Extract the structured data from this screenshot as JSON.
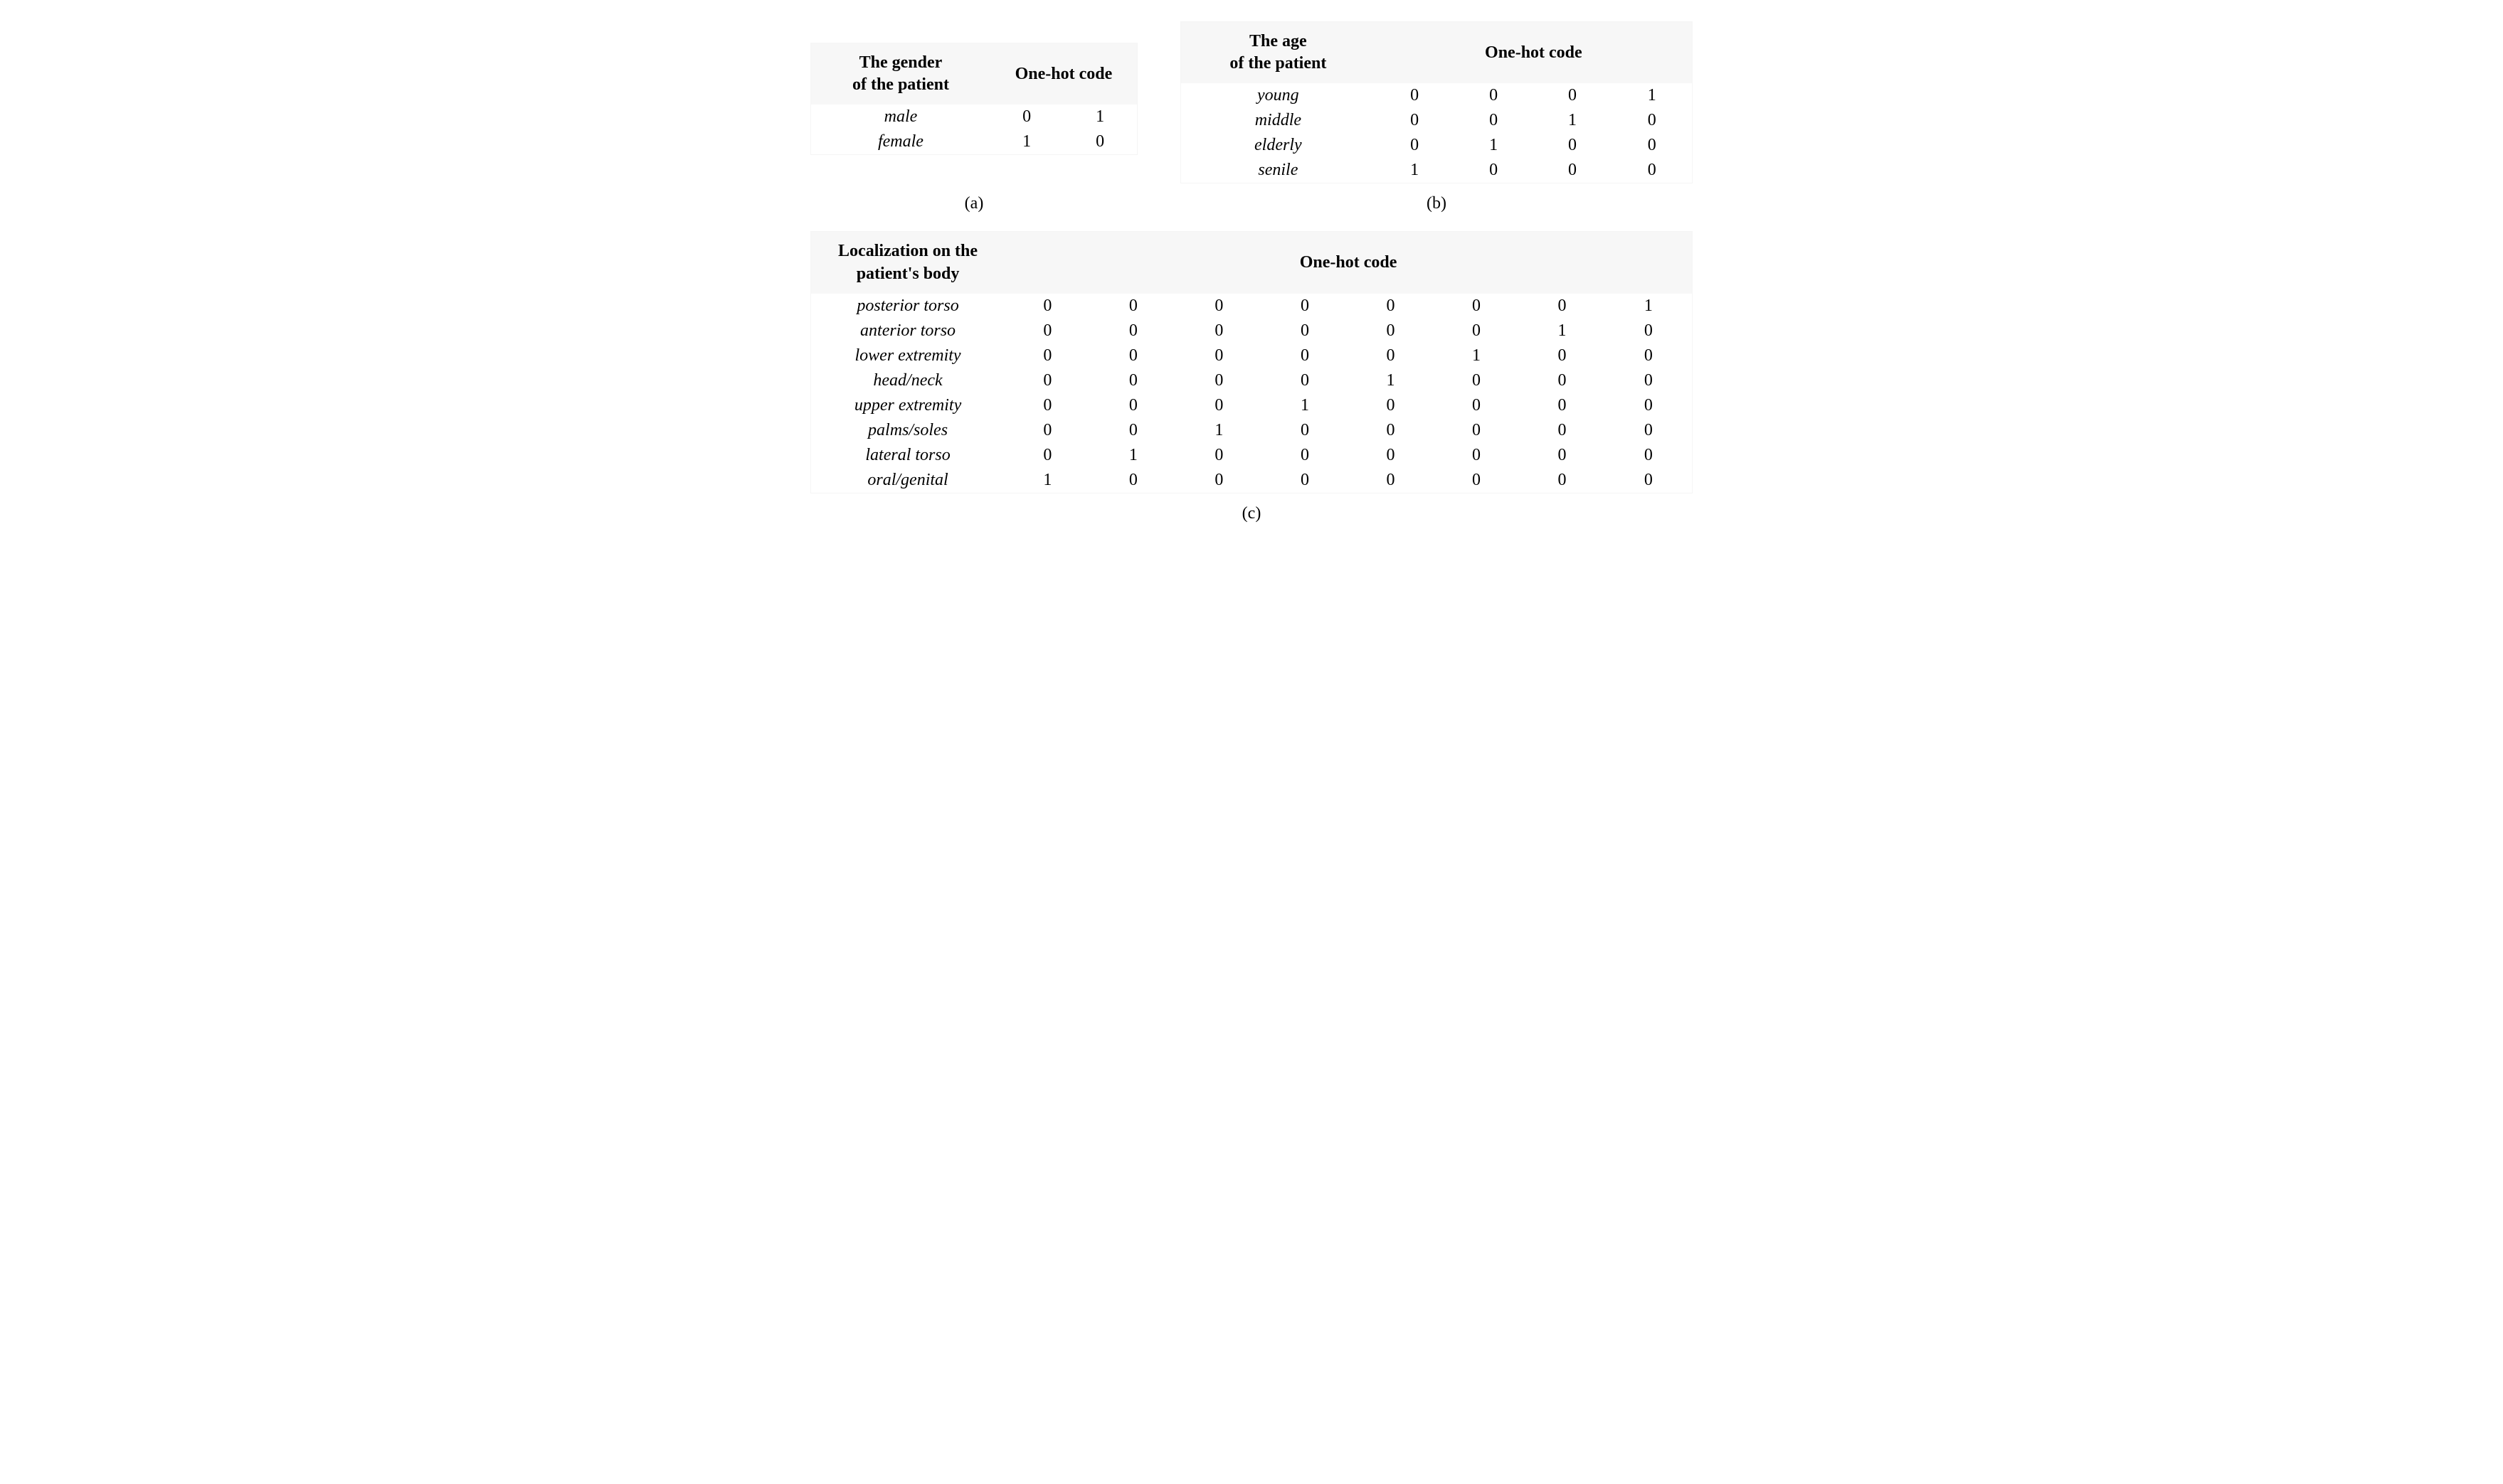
{
  "tableA": {
    "header": {
      "category": "The gender\nof the patient",
      "code": "One-hot code"
    },
    "rows": [
      {
        "label": "male",
        "code": [
          "0",
          "1"
        ]
      },
      {
        "label": "female",
        "code": [
          "1",
          "0"
        ]
      }
    ],
    "caption": "(a)",
    "code_cols": 2,
    "header_bg": "#f7f7f7",
    "border_color": "#f5f5f5",
    "label_fontstyle": "italic",
    "fontsize": 24
  },
  "tableB": {
    "header": {
      "category": "The age\nof the patient",
      "code": "One-hot code"
    },
    "rows": [
      {
        "label": "young",
        "code": [
          "0",
          "0",
          "0",
          "1"
        ]
      },
      {
        "label": "middle",
        "code": [
          "0",
          "0",
          "1",
          "0"
        ]
      },
      {
        "label": "elderly",
        "code": [
          "0",
          "1",
          "0",
          "0"
        ]
      },
      {
        "label": "senile",
        "code": [
          "1",
          "0",
          "0",
          "0"
        ]
      }
    ],
    "caption": "(b)",
    "code_cols": 4,
    "header_bg": "#f7f7f7",
    "border_color": "#f5f5f5",
    "label_fontstyle": "italic",
    "fontsize": 24
  },
  "tableC": {
    "header": {
      "category": "Localization on the\npatient's body",
      "code": "One-hot code"
    },
    "rows": [
      {
        "label": "posterior torso",
        "code": [
          "0",
          "0",
          "0",
          "0",
          "0",
          "0",
          "0",
          "1"
        ]
      },
      {
        "label": "anterior torso",
        "code": [
          "0",
          "0",
          "0",
          "0",
          "0",
          "0",
          "1",
          "0"
        ]
      },
      {
        "label": "lower extremity",
        "code": [
          "0",
          "0",
          "0",
          "0",
          "0",
          "1",
          "0",
          "0"
        ]
      },
      {
        "label": "head/neck",
        "code": [
          "0",
          "0",
          "0",
          "0",
          "1",
          "0",
          "0",
          "0"
        ]
      },
      {
        "label": "upper extremity",
        "code": [
          "0",
          "0",
          "0",
          "1",
          "0",
          "0",
          "0",
          "0"
        ]
      },
      {
        "label": "palms/soles",
        "code": [
          "0",
          "0",
          "1",
          "0",
          "0",
          "0",
          "0",
          "0"
        ]
      },
      {
        "label": "lateral torso",
        "code": [
          "0",
          "1",
          "0",
          "0",
          "0",
          "0",
          "0",
          "0"
        ]
      },
      {
        "label": "oral/genital",
        "code": [
          "1",
          "0",
          "0",
          "0",
          "0",
          "0",
          "0",
          "0"
        ]
      }
    ],
    "caption": "(c)",
    "code_cols": 8,
    "header_bg": "#f7f7f7",
    "border_color": "#f5f5f5",
    "label_fontstyle": "italic",
    "fontsize": 24
  },
  "layout": {
    "background_color": "#ffffff",
    "text_color": "#000000"
  }
}
